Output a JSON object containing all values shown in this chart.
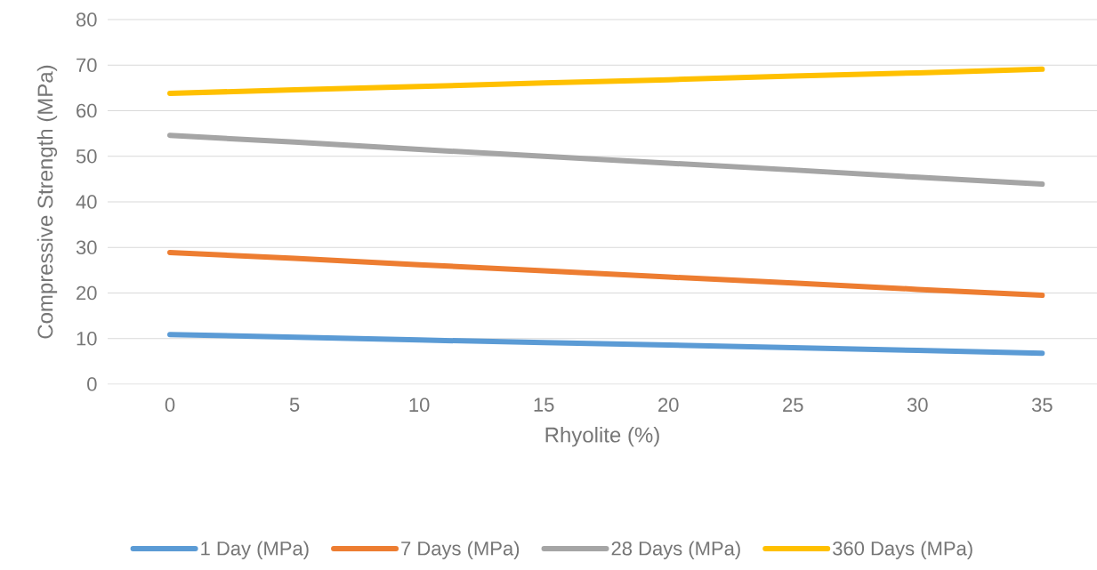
{
  "chart_data": {
    "type": "line",
    "xlabel": "Rhyolite (%)",
    "ylabel": "Compressive Strength (MPa)",
    "categories": [
      "0",
      "5",
      "10",
      "15",
      "20",
      "25",
      "30",
      "35"
    ],
    "series": [
      {
        "name": "1 Day (MPa)",
        "color": "#5b9bd5",
        "values": [
          10.9,
          10.3,
          9.7,
          9.1,
          8.6,
          8.0,
          7.4,
          6.8
        ]
      },
      {
        "name": "7 Days (MPa)",
        "color": "#ed7d31",
        "values": [
          28.9,
          27.6,
          26.2,
          24.9,
          23.5,
          22.2,
          20.8,
          19.5
        ]
      },
      {
        "name": "28 Days (MPa)",
        "color": "#a5a5a5",
        "values": [
          54.6,
          53.1,
          51.5,
          50.0,
          48.5,
          47.0,
          45.4,
          43.9
        ]
      },
      {
        "name": "360 Days (MPa)",
        "color": "#ffc000",
        "values": [
          63.8,
          64.6,
          65.3,
          66.1,
          66.8,
          67.6,
          68.3,
          69.1
        ]
      }
    ],
    "ylim": [
      0,
      80
    ],
    "yticks": [
      0,
      10,
      20,
      30,
      40,
      50,
      60,
      70,
      80
    ],
    "grid": "y",
    "legend": "bottom",
    "marker": "none",
    "line_style": "solid"
  }
}
